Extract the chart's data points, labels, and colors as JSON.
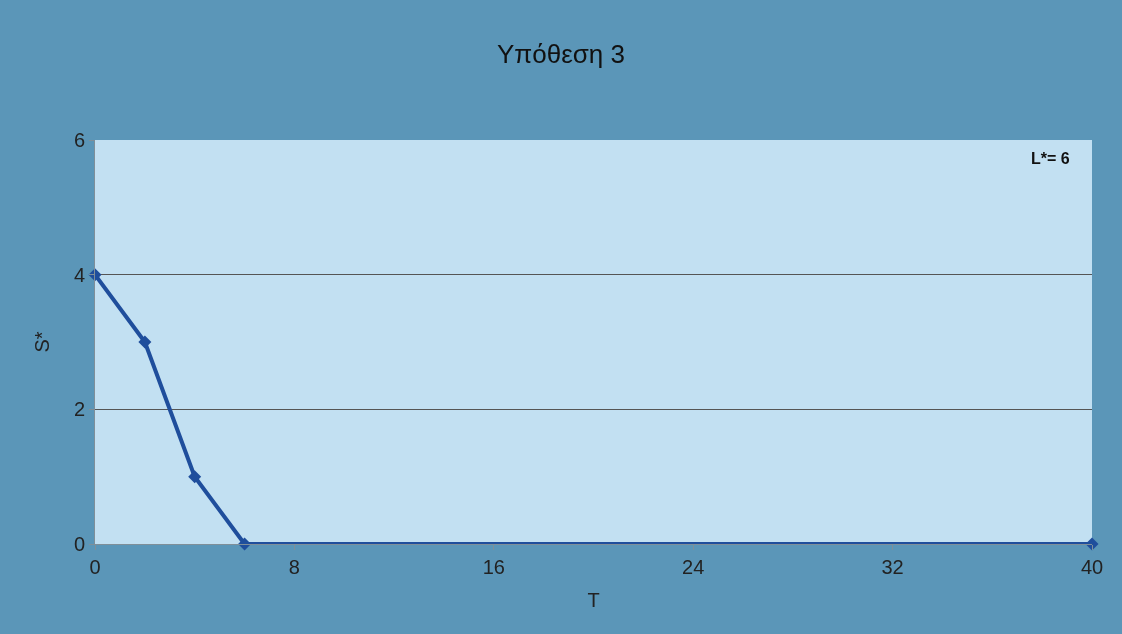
{
  "chart_data": {
    "type": "line",
    "title": "Υπόθεση 3",
    "xlabel": "T",
    "ylabel": "S*",
    "x": [
      0,
      2,
      4,
      6,
      40
    ],
    "series": [
      {
        "color": "#1f4e9c",
        "values": [
          4,
          3,
          1,
          0,
          0
        ]
      }
    ],
    "xlim": [
      0,
      40
    ],
    "xticks": [
      0,
      8,
      16,
      24,
      32,
      40
    ],
    "ylim": [
      0,
      6
    ],
    "yticks": [
      0,
      2,
      4,
      6
    ],
    "grid": "y",
    "marker": "diamond",
    "line_style": "solid",
    "legend": false,
    "annotations": [
      "L*= 6"
    ]
  }
}
